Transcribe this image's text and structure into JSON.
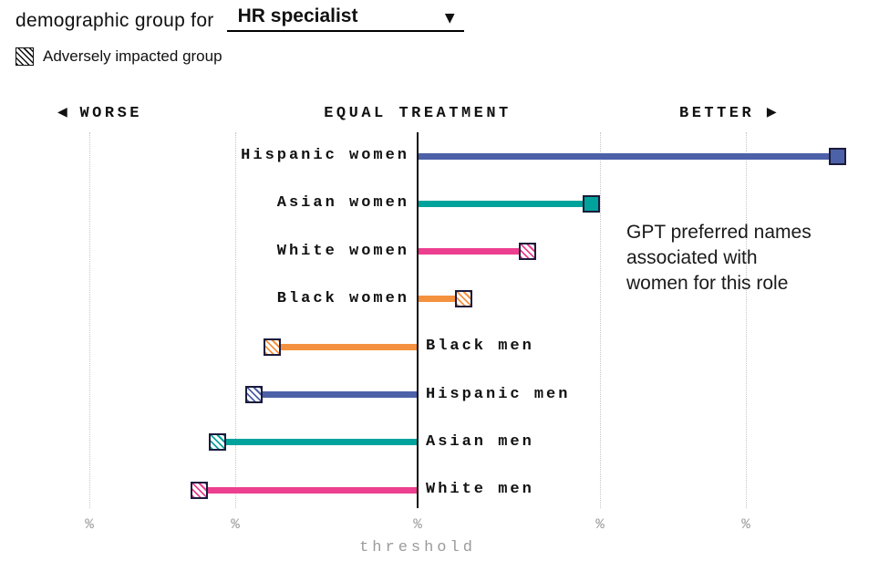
{
  "page": {
    "title_prefix": "demographic group for",
    "dropdown": {
      "value": "HR specialist",
      "arrow": "▼"
    }
  },
  "chart_data": {
    "type": "bar",
    "subtype": "diverging-horizontal-lollipop",
    "title": "",
    "axis_headers": {
      "left_arrow": "◀",
      "left": "WORSE",
      "center": "EQUAL TREATMENT",
      "right": "BETTER",
      "right_arrow": "▶"
    },
    "xlabel": "threshold",
    "unit": "%",
    "x_range": [
      -45,
      50
    ],
    "grid": true,
    "axis_ticks": [
      {
        "value": -36,
        "label": "%"
      },
      {
        "value": -20,
        "label": "%"
      },
      {
        "value": 0,
        "label": "%"
      },
      {
        "value": 20,
        "label": "%"
      },
      {
        "value": 36,
        "label": "%"
      }
    ],
    "categories": [
      "Hispanic women",
      "Asian women",
      "White women",
      "Black women",
      "Black men",
      "Hispanic men",
      "Asian men",
      "White men"
    ],
    "values": [
      46,
      19,
      12,
      5,
      -16,
      -18,
      -22,
      -24
    ],
    "adversely_impacted": [
      false,
      false,
      true,
      true,
      true,
      true,
      true,
      true
    ],
    "colors": [
      "#4C61A8",
      "#00A39B",
      "#ED3F8F",
      "#F4913E",
      "#F4913E",
      "#4C61A8",
      "#00A39B",
      "#ED3F8F"
    ],
    "legend": [
      {
        "label": "Adversely impacted group",
        "pattern": "hatched"
      }
    ],
    "legend_position": "top-left",
    "annotation": {
      "lines": [
        "GPT preferred names",
        "associated with",
        "women for this role"
      ]
    }
  },
  "colors": {
    "marker_border": "#1B1B3C",
    "axis_line": "#111111",
    "gridline": "#C6C6C6",
    "muted_text": "#9B9B9B",
    "text": "#111111"
  }
}
